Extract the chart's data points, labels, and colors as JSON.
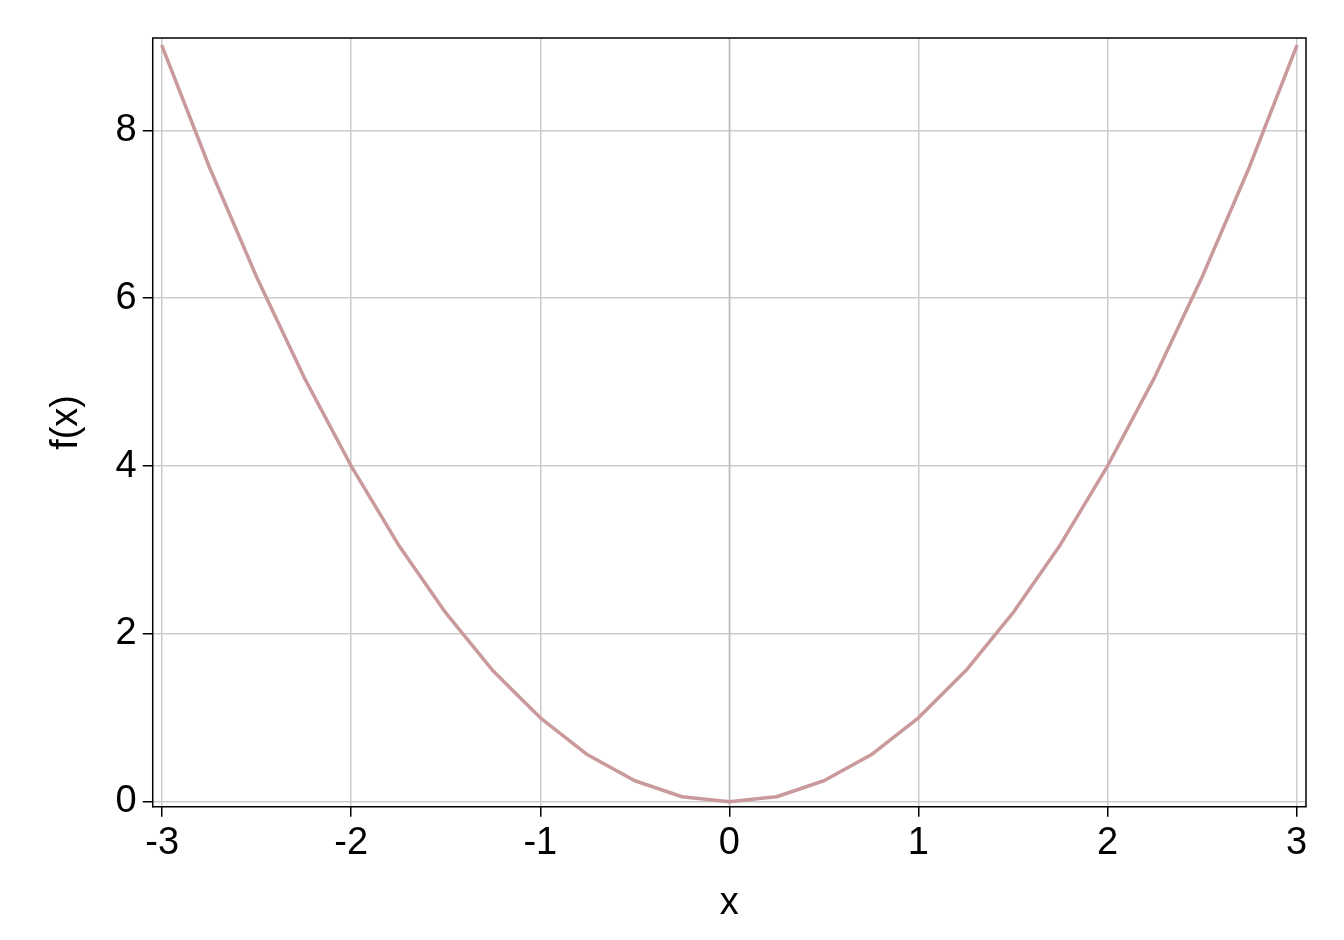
{
  "chart_data": {
    "type": "line",
    "xlabel": "x",
    "ylabel": "f(x)",
    "x": [
      -3,
      -2.75,
      -2.5,
      -2.25,
      -2,
      -1.75,
      -1.5,
      -1.25,
      -1,
      -0.75,
      -0.5,
      -0.25,
      0,
      0.25,
      0.5,
      0.75,
      1,
      1.25,
      1.5,
      1.75,
      2,
      2.25,
      2.5,
      2.75,
      3
    ],
    "series": [
      {
        "color": "#c9999b",
        "values": [
          9,
          7.56,
          6.25,
          5.06,
          4,
          3.06,
          2.25,
          1.56,
          1,
          0.56,
          0.25,
          0.06,
          0,
          0.06,
          0.25,
          0.56,
          1,
          1.56,
          2.25,
          3.06,
          4,
          5.06,
          6.25,
          7.56,
          9
        ]
      }
    ],
    "xlim": [
      -3.05,
      3.05
    ],
    "ylim": [
      -0.06,
      9.1
    ],
    "xticks": [
      -3,
      -2,
      -1,
      0,
      1,
      2,
      3
    ],
    "yticks": [
      0,
      2,
      4,
      6,
      8
    ],
    "ref_lines": [
      {
        "axis": "x",
        "value": 0,
        "color": "#bebebe"
      }
    ],
    "grid": true,
    "legend": false,
    "marker": "none",
    "line_style": "solid"
  }
}
